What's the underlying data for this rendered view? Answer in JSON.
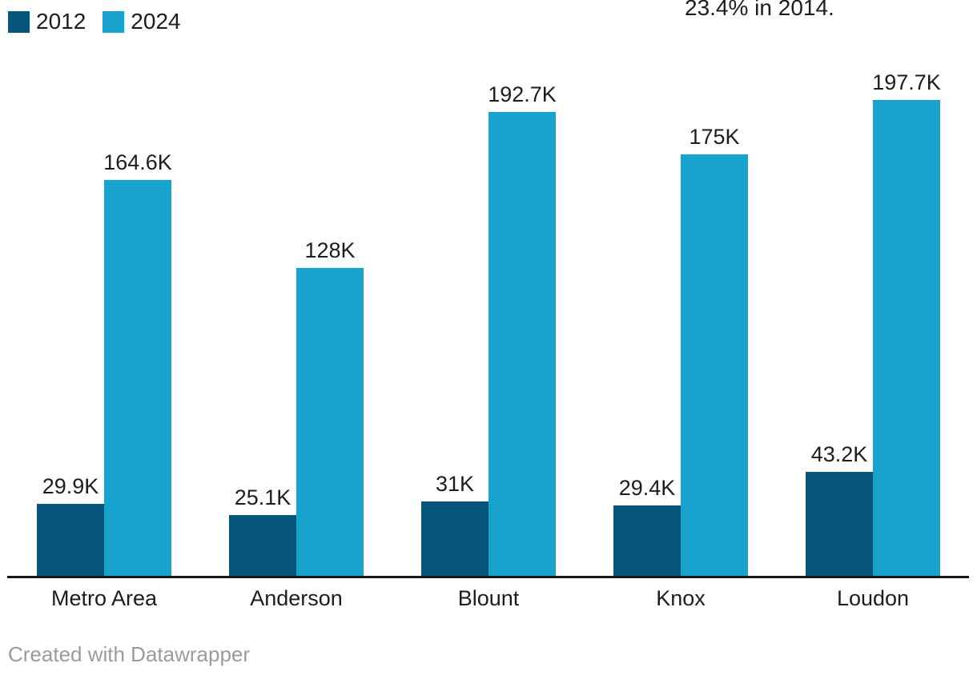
{
  "chart_data": {
    "type": "bar",
    "categories": [
      "Metro Area",
      "Anderson",
      "Blount",
      "Knox",
      "Loudon"
    ],
    "series": [
      {
        "name": "2012",
        "values": [
          29900,
          25100,
          31000,
          29400,
          43200
        ],
        "labels": [
          "29.9K",
          "25.1K",
          "31K",
          "29.4K",
          "43.2K"
        ],
        "color": "#06567c"
      },
      {
        "name": "2024",
        "values": [
          164600,
          128000,
          192700,
          175000,
          197700
        ],
        "labels": [
          "164.6K",
          "128K",
          "192.7K",
          "175K",
          "197.7K"
        ],
        "color": "#18a2ce"
      }
    ],
    "title_fragment_clipped": "23.4% in 2014.",
    "ylim": [
      0,
      197700
    ],
    "grid": false,
    "legend_position": "top-left",
    "value_labels_shown": true
  },
  "footer": {
    "credit": "Created with Datawrapper"
  }
}
